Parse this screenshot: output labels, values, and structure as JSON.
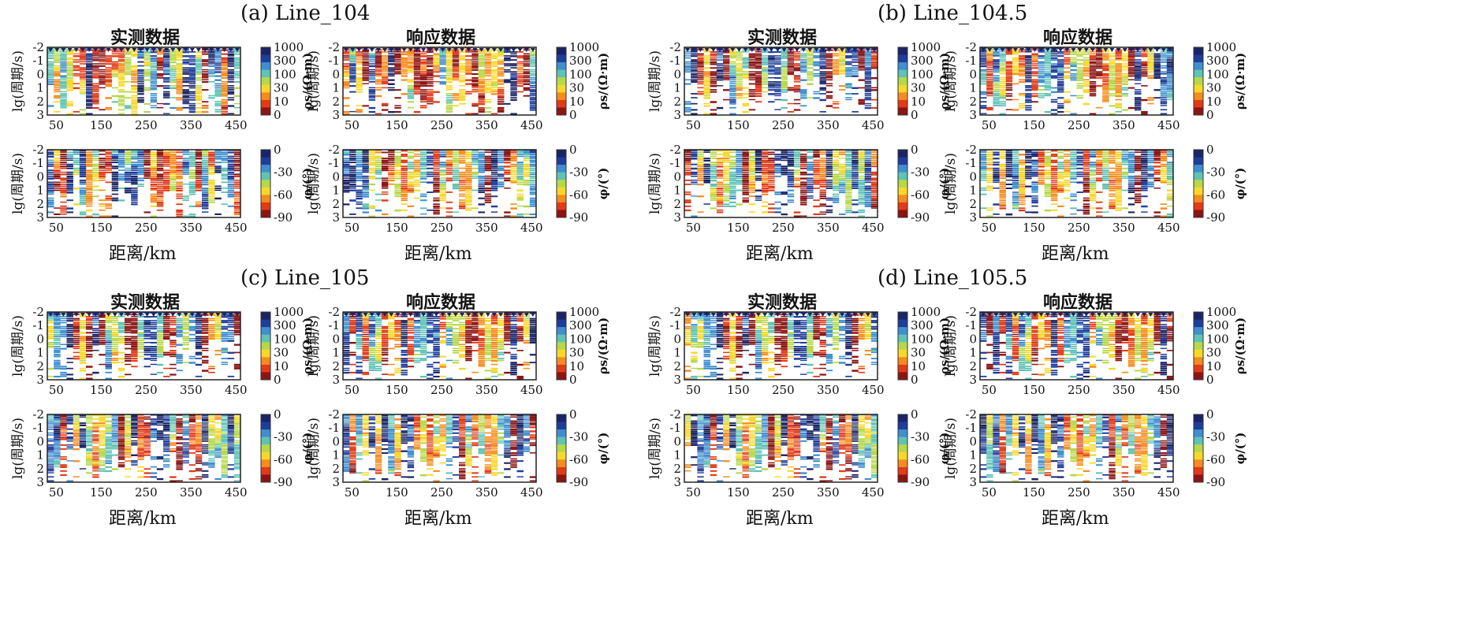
{
  "colors": {
    "scale": [
      "#8c1414",
      "#e23b18",
      "#f58c1e",
      "#f7d82a",
      "#b6d84a",
      "#5fc3b5",
      "#3f8fcf",
      "#1f3d9a",
      "#1a2466"
    ],
    "frame": "#222222",
    "station_marker": "#1a2466"
  },
  "groups": [
    {
      "title": "(a) Line_104",
      "pair_labels": [
        "实测数据",
        "响应数据"
      ],
      "xlabel": "距离/km"
    },
    {
      "title": "(b) Line_104.5",
      "pair_labels": [
        "实测数据",
        "响应数据"
      ],
      "xlabel": "距离/km"
    },
    {
      "title": "(c) Line_105",
      "pair_labels": [
        "实测数据",
        "响应数据"
      ],
      "xlabel": "距离/km"
    },
    {
      "title": "(d) Line_105.5",
      "pair_labels": [
        "实测数据",
        "响应数据"
      ],
      "xlabel": "距离/km"
    }
  ],
  "chart_data": {
    "type": "heatmap",
    "rows": [
      "apparent_resistivity",
      "phase"
    ],
    "xlim": [
      30,
      460
    ],
    "x_ticks": [
      "50",
      "150",
      "250",
      "350",
      "450"
    ],
    "x_tick_values": [
      50,
      150,
      250,
      350,
      450
    ],
    "ylabel": "lg(周期/s)",
    "y_ticks": [
      "-2",
      "-1",
      "0",
      "1",
      "2",
      "3"
    ],
    "y_tick_values": [
      -2,
      -1,
      0,
      1,
      2,
      3
    ],
    "ylim": [
      -2,
      3
    ],
    "colorbars": {
      "apparent_resistivity": {
        "label": "ρs/(Ω·m)",
        "ticks": [
          "1000",
          "300",
          "100",
          "30",
          "10",
          "0"
        ],
        "scale": "log"
      },
      "phase": {
        "label": "φ/(°)",
        "ticks": [
          "0",
          "-30",
          "-60",
          "-90"
        ]
      }
    }
  }
}
